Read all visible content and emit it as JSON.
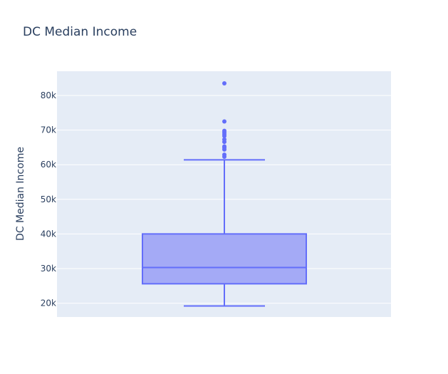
{
  "chart_data": {
    "type": "box",
    "title": "DC Median Income",
    "ylabel": "DC Median Income",
    "xlabel": "",
    "ylim": [
      16000,
      87000
    ],
    "yticks": [
      20000,
      30000,
      40000,
      50000,
      60000,
      70000,
      80000
    ],
    "ytick_labels": [
      "20k",
      "30k",
      "40k",
      "50k",
      "60k",
      "70k",
      "80k"
    ],
    "grid": true,
    "box": {
      "min": 19200,
      "q1": 25600,
      "median": 30300,
      "q3": 40000,
      "max": 61400,
      "outliers": [
        62300,
        62900,
        64400,
        64900,
        65300,
        66600,
        67300,
        68300,
        68800,
        69300,
        69800,
        72500,
        83500
      ]
    },
    "colors": {
      "box_line": "#636efa",
      "box_fill": "#a4aaf6",
      "plot_bg": "#e5ecf6",
      "grid": "#ffffff",
      "text": "#2a3f5f"
    }
  }
}
